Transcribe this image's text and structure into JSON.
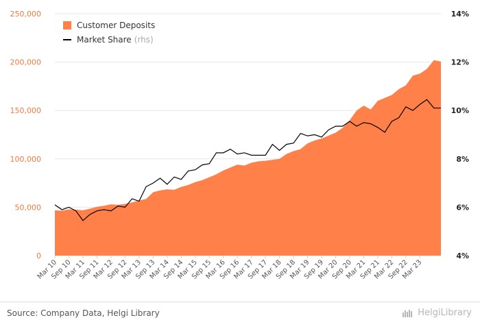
{
  "chart_data": {
    "type": "area",
    "series": [
      {
        "name": "Customer Deposits",
        "axis": "left",
        "color": "#ff8048",
        "values": [
          46700,
          46500,
          47800,
          47500,
          46800,
          48500,
          50500,
          51500,
          53000,
          52500,
          53500,
          55000,
          57000,
          58500,
          65500,
          67500,
          68500,
          68000,
          71000,
          73000,
          76000,
          78000,
          81000,
          84000,
          88000,
          91000,
          94000,
          93000,
          96000,
          97500,
          98000,
          99000,
          100000,
          105000,
          108000,
          110000,
          116000,
          119000,
          121000,
          124000,
          127000,
          132000,
          140000,
          150000,
          155000,
          151000,
          160000,
          163000,
          166000,
          172000,
          176000,
          186000,
          188000,
          193000,
          202000,
          200500
        ]
      },
      {
        "name": "Market Share",
        "axis": "right",
        "color": "#000000",
        "values": [
          6.1,
          5.9,
          6.0,
          5.85,
          5.45,
          5.7,
          5.85,
          5.9,
          5.85,
          6.05,
          6.0,
          6.35,
          6.25,
          6.85,
          7.0,
          7.2,
          6.95,
          7.25,
          7.15,
          7.5,
          7.55,
          7.75,
          7.8,
          8.25,
          8.25,
          8.4,
          8.2,
          8.25,
          8.15,
          8.15,
          8.15,
          8.6,
          8.35,
          8.6,
          8.65,
          9.05,
          8.95,
          9.0,
          8.9,
          9.2,
          9.35,
          9.35,
          9.55,
          9.35,
          9.5,
          9.45,
          9.3,
          9.1,
          9.55,
          9.7,
          10.15,
          10.0,
          10.25,
          10.45,
          10.1,
          10.1
        ]
      }
    ],
    "left_axis": {
      "min": 0,
      "max": 250000,
      "ticks": [
        "0",
        "50,000",
        "100,000",
        "150,000",
        "200,000",
        "250,000"
      ],
      "color": "#f47a3c"
    },
    "right_axis": {
      "min": 4,
      "max": 14,
      "ticks": [
        "4%",
        "6%",
        "8%",
        "10%",
        "12%",
        "14%"
      ]
    },
    "x_tick_labels": [
      "Mar 10",
      "Sep 10",
      "Mar 11",
      "Sep 11",
      "Mar 12",
      "Sep 12",
      "Mar 13",
      "Sep 13",
      "Mar 14",
      "Sep 14",
      "Mar 15",
      "Sep 15",
      "Mar 16",
      "Sep 16",
      "Mar 17",
      "Sep 17",
      "Mar 18",
      "Sep 18",
      "Mar 19",
      "Sep 19",
      "Mar 20",
      "Sep 20",
      "Mar 21",
      "Sep 21",
      "Mar 22",
      "Sep 22",
      "Mar 23"
    ],
    "grid": true,
    "legend_position": "top-left"
  },
  "legend": {
    "deposits_label": "Customer Deposits",
    "share_label": "Market Share",
    "rhs_note": "(rhs)"
  },
  "footer": {
    "source": "Source: Company Data, Helgi Library",
    "logo_text": "HelgiLibrary"
  }
}
